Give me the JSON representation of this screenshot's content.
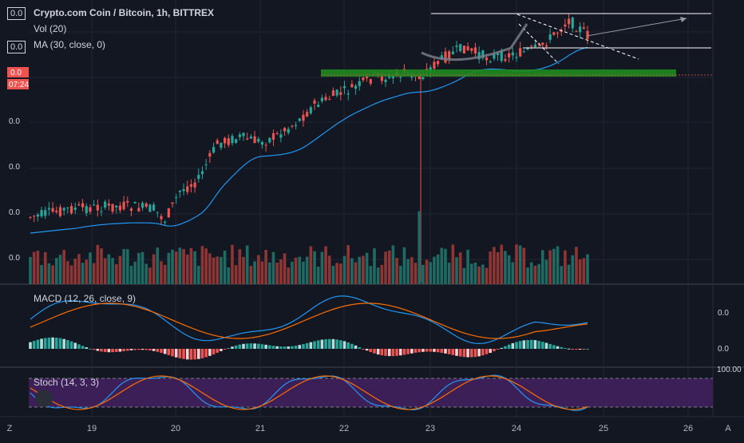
{
  "header": {
    "symbol_title": "Crypto.com Coin / Bitcoin, 1h, BITTREX",
    "vol_label": "Vol (20)",
    "ma_label": "MA (30, close, 0)",
    "badge_value": "0.0"
  },
  "price_badge": {
    "value": "0.0",
    "countdown": "07:24"
  },
  "price_axis": {
    "labels": [
      "0.0",
      "0.0",
      "0.0",
      "0.0",
      "0.0"
    ]
  },
  "macd": {
    "label": "MACD (12, 26, close, 9)",
    "axis_labels": [
      "0.0",
      "0.0"
    ]
  },
  "stoch": {
    "label": "Stoch (14, 3, 3)",
    "axis_top": "100.00"
  },
  "time_axis": {
    "labels": [
      "19",
      "20",
      "21",
      "22",
      "23",
      "24",
      "25",
      "26"
    ]
  },
  "corner": {
    "left": "Z",
    "right": "A"
  },
  "colors": {
    "up": "#26a69a",
    "down": "#ef5350",
    "ma": "#2196f3",
    "macd": "#2196f3",
    "signal": "#ff6d00",
    "support": "#1e8a1e",
    "stoch_k": "#2196f3",
    "stoch_d": "#ff6d00",
    "stoch_band": "#3c1f57"
  },
  "chart_data": {
    "type": "candlestick",
    "title": "Crypto.com Coin / Bitcoin, 1h, BITTREX",
    "x_range": [
      "18",
      "26"
    ],
    "xticks": [
      "19",
      "20",
      "21",
      "22",
      "23",
      "24",
      "25",
      "26"
    ],
    "close_trend": [
      0.0,
      0.0,
      0.0,
      0.0,
      0.0
    ]
  }
}
